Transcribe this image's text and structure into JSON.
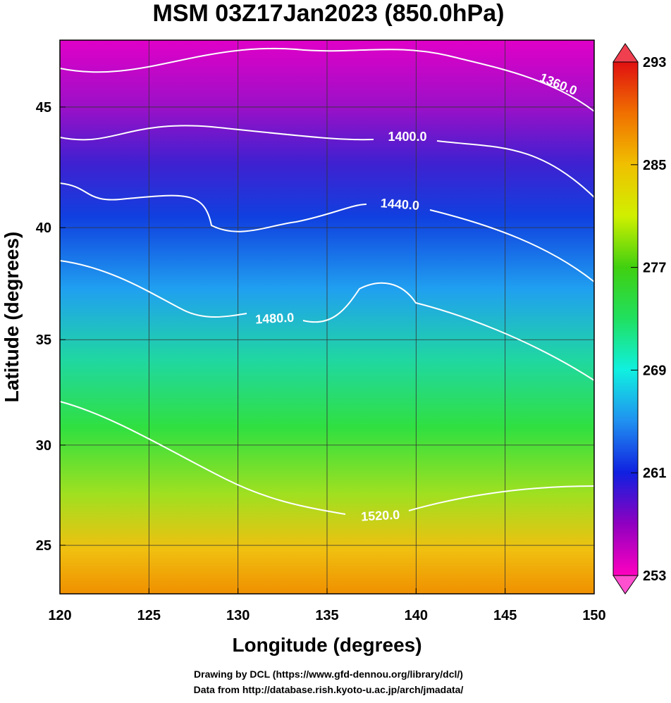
{
  "chart_data": {
    "type": "map",
    "title": "MSM 03Z17Jan2023 (850.0hPa)",
    "x_label": "Longitude (degrees)",
    "y_label": "Latitude  (degrees)",
    "xlim": [
      120,
      150
    ],
    "xticks": [
      120,
      125,
      130,
      135,
      140,
      145,
      150
    ],
    "ylim": [
      22.5,
      47.6
    ],
    "yticks": [
      25,
      30,
      35,
      40,
      45
    ],
    "grid": true,
    "contour_labels": [
      "1360.0",
      "1400.0",
      "1440.0",
      "1480.0",
      "1520.0"
    ],
    "colorbar": {
      "lim": [
        253,
        293
      ],
      "ticks": [
        253,
        261,
        269,
        277,
        285,
        293
      ]
    },
    "footer": [
      "Drawing by DCL (https://www.gfd-dennou.org/library/dcl/)",
      "Data from http://database.rish.kyoto-u.ac.jp/arch/jmadata/"
    ]
  }
}
